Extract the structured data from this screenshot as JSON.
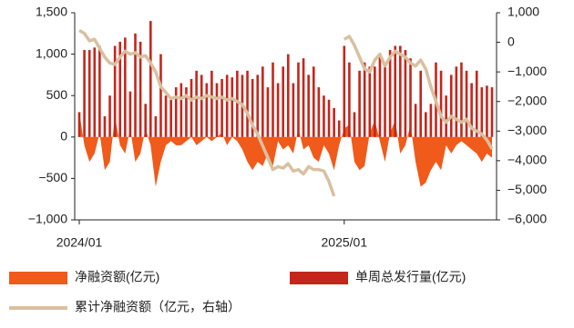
{
  "chart_data": {
    "type": "combo",
    "categories": [
      "2024/01",
      null,
      null,
      null,
      null,
      null,
      null,
      null,
      null,
      null,
      null,
      null,
      null,
      null,
      null,
      null,
      null,
      null,
      null,
      null,
      null,
      null,
      null,
      null,
      null,
      null,
      null,
      null,
      null,
      null,
      null,
      null,
      null,
      null,
      null,
      null,
      null,
      null,
      null,
      null,
      null,
      null,
      null,
      null,
      null,
      null,
      null,
      null,
      null,
      null,
      null,
      null,
      "2025/01",
      null,
      null,
      null,
      null,
      null,
      null,
      null,
      null,
      null,
      null,
      null,
      null,
      null,
      null,
      null,
      null,
      null,
      null,
      null,
      null,
      null,
      null,
      null,
      null,
      null,
      null,
      null,
      null,
      null
    ],
    "ylim": [
      -1000,
      1500
    ],
    "yticks": [
      {
        "value": -1000,
        "label": "−1,000"
      },
      {
        "value": -500,
        "label": "−500"
      },
      0,
      500,
      {
        "value": 1000,
        "label": "1,000"
      },
      {
        "value": 1500,
        "label": "1,500"
      }
    ],
    "y2lim": [
      -6000,
      1000
    ],
    "y2ticks": [
      {
        "value": -6000,
        "label": "−6,000"
      },
      {
        "value": -5000,
        "label": "−5,000"
      },
      {
        "value": -4000,
        "label": "−4,000"
      },
      {
        "value": -3000,
        "label": "−3,000"
      },
      {
        "value": -2000,
        "label": "−2,000"
      },
      {
        "value": -1000,
        "label": "−1,000"
      },
      0,
      {
        "value": 1000,
        "label": "1,000"
      }
    ],
    "legend": "bottom",
    "series": [
      {
        "name": "净融资额(亿元)",
        "type": "area",
        "color": "#f05a1a",
        "values": [
          300,
          -100,
          -300,
          -200,
          50,
          -400,
          -300,
          250,
          -100,
          -200,
          100,
          -300,
          -200,
          100,
          -100,
          -600,
          -300,
          -100,
          -50,
          -100,
          -100,
          -50,
          0,
          -100,
          -50,
          0,
          -50,
          0,
          50,
          -100,
          0,
          -50,
          -150,
          -300,
          -400,
          -300,
          -350,
          -200,
          -350,
          -50,
          -150,
          -100,
          -200,
          100,
          -150,
          -100,
          -250,
          -300,
          -100,
          -200,
          -400,
          -100,
          100,
          150,
          -300,
          -400,
          -350,
          50,
          200,
          -50,
          -300,
          50,
          200,
          -200,
          -100,
          150,
          -300,
          -600,
          -550,
          -400,
          -300,
          -400,
          -100,
          -200,
          -100,
          -50,
          -100,
          -150,
          -200,
          -300,
          -200,
          -250
        ]
      },
      {
        "name": "单周总发行量(亿元)",
        "type": "bar",
        "color": "#c4261c",
        "values": [
          300,
          1050,
          1050,
          1080,
          1100,
          250,
          500,
          1100,
          1150,
          1200,
          550,
          1250,
          1150,
          400,
          1400,
          250,
          1000,
          500,
          450,
          600,
          650,
          600,
          700,
          800,
          750,
          650,
          800,
          650,
          700,
          750,
          720,
          800,
          750,
          800,
          700,
          750,
          850,
          600,
          900,
          650,
          850,
          1000,
          650,
          900,
          950,
          750,
          850,
          600,
          500,
          450,
          350,
          200,
          1100,
          900,
          300,
          800,
          900,
          850,
          850,
          1000,
          850,
          1050,
          1100,
          1100,
          1050,
          950,
          400,
          800,
          300,
          400,
          900,
          800,
          500,
          750,
          850,
          900,
          800,
          650,
          800,
          600,
          620,
          600
        ]
      },
      {
        "name": "累计净融资额（亿元，右轴）",
        "type": "line",
        "axis": "y2",
        "color": "#d9c0a0",
        "values": [
          400,
          300,
          50,
          100,
          -200,
          -500,
          -700,
          -750,
          -500,
          -300,
          -400,
          -350,
          -500,
          -450,
          -700,
          -1000,
          -1500,
          -1700,
          -1900,
          -1850,
          -1900,
          -1800,
          -1950,
          -1850,
          -1900,
          -1800,
          -1850,
          -1900,
          -1850,
          -1950,
          -1900,
          -2000,
          -2100,
          -2400,
          -2800,
          -3100,
          -3500,
          -3900,
          -4300,
          -4200,
          -4250,
          -4100,
          -4350,
          -4300,
          -4450,
          -4200,
          -4300,
          -4300,
          -4350,
          -4700,
          -5200,
          null,
          100,
          200,
          -100,
          -500,
          -900,
          -1000,
          -600,
          -400,
          -800,
          -500,
          -300,
          -400,
          -500,
          -700,
          -800,
          -600,
          -900,
          -1500,
          -2000,
          -2500,
          -2700,
          -2500,
          -2600,
          -2700,
          -2600,
          -2900,
          -3000,
          -3100,
          -3300,
          -3600
        ]
      }
    ]
  }
}
